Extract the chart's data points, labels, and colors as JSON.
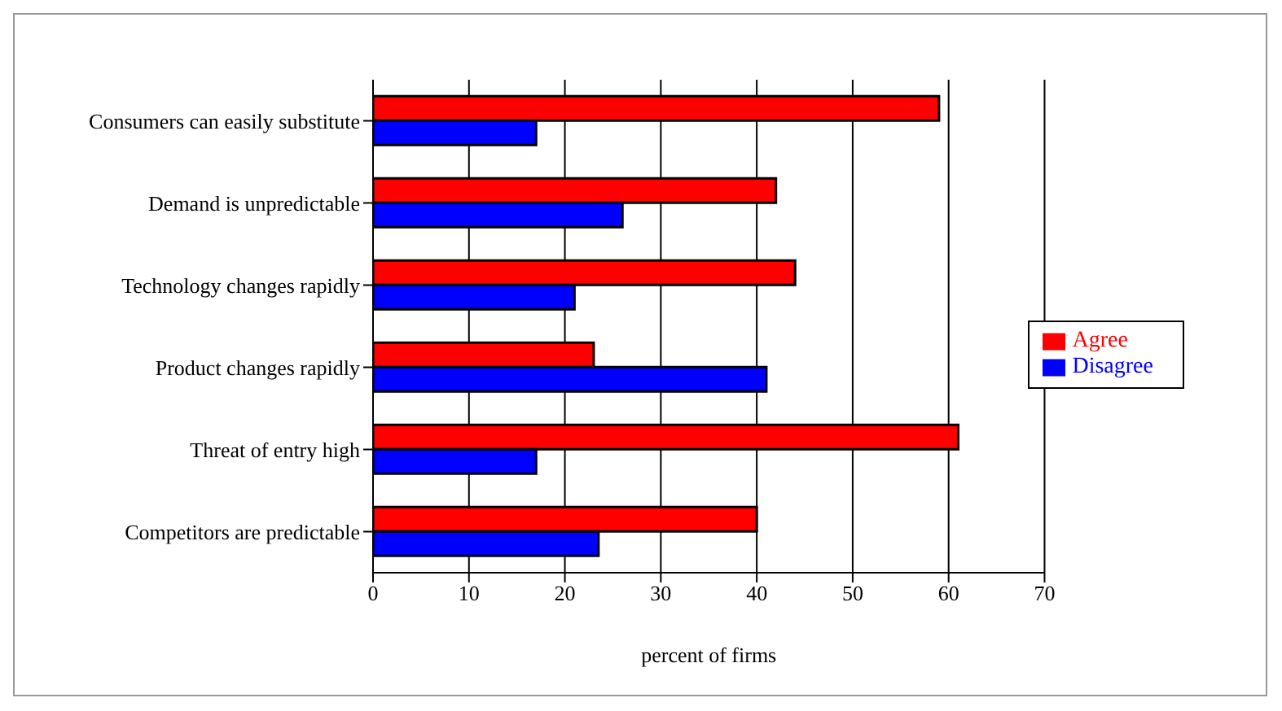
{
  "chart_data": {
    "type": "bar",
    "orientation": "horizontal",
    "xlabel": "percent of firms",
    "categories": [
      "Consumers can easily substitute",
      "Demand is unpredictable",
      "Technology changes rapidly",
      "Product changes rapidly",
      "Threat of entry high",
      "Competitors are predictable"
    ],
    "series": [
      {
        "name": "Agree",
        "color": "#ff0000",
        "values": [
          59,
          42,
          44,
          23,
          61,
          40
        ]
      },
      {
        "name": "Disagree",
        "color": "#0000ff",
        "values": [
          17,
          26,
          21,
          41,
          17,
          23.5
        ]
      }
    ],
    "xlim": [
      0,
      70
    ],
    "xticks": [
      0,
      10,
      20,
      30,
      40,
      50,
      60,
      70
    ],
    "grid": "x",
    "legend": "right"
  }
}
